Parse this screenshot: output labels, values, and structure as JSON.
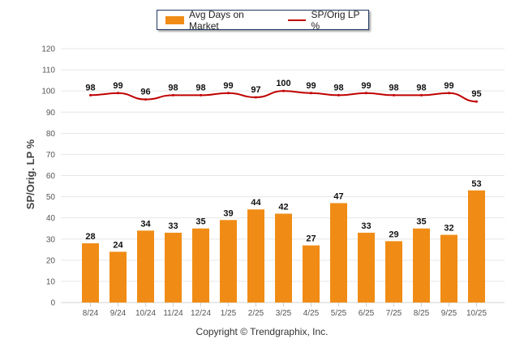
{
  "chart_data": {
    "type": "bar",
    "categories": [
      "8/24",
      "9/24",
      "10/24",
      "11/24",
      "12/24",
      "1/25",
      "2/25",
      "3/25",
      "4/25",
      "5/25",
      "6/25",
      "7/25",
      "8/25",
      "9/25",
      "10/25"
    ],
    "series": [
      {
        "name": "Avg Days on Market",
        "type": "bar",
        "color": "#f08c15",
        "values": [
          28,
          24,
          34,
          33,
          35,
          39,
          44,
          42,
          27,
          47,
          33,
          29,
          35,
          32,
          53
        ]
      },
      {
        "name": "SP/Orig LP %",
        "type": "line",
        "color": "#c00000",
        "values": [
          98,
          99,
          96,
          98,
          98,
          99,
          97,
          100,
          99,
          98,
          99,
          98,
          98,
          99,
          95
        ]
      }
    ],
    "ylabel": "SP/Orig. LP %",
    "xlabel": "",
    "ylim": [
      0,
      120
    ],
    "yticks": [
      0,
      10,
      20,
      30,
      40,
      50,
      60,
      70,
      80,
      90,
      100,
      110,
      120
    ],
    "grid": true,
    "legend": "top-center"
  },
  "legend": {
    "bar_label": "Avg Days on Market",
    "line_label": "SP/Orig LP %"
  },
  "footer": {
    "copyright": "Copyright © Trendgraphix, Inc."
  }
}
